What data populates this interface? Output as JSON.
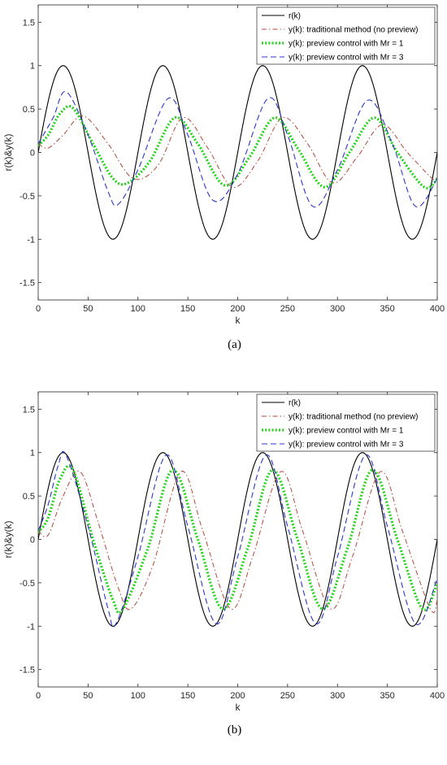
{
  "chart_data": [
    {
      "type": "line",
      "caption": "(a)",
      "xlabel": "k",
      "ylabel": "r(k)&y(k)",
      "xlim": [
        0,
        400
      ],
      "ylim": [
        -1.7,
        1.7
      ],
      "xticks": [
        "0",
        "50",
        "100",
        "150",
        "200",
        "250",
        "300",
        "350",
        "400"
      ],
      "yticks": [
        "-1.5",
        "-1",
        "-0.5",
        "0",
        "0.5",
        "1",
        "1.5"
      ],
      "grid": false,
      "legend_position": "top-right",
      "series": [
        {
          "name": "r(k)",
          "color": "#000000",
          "style": "solid",
          "model": {
            "amplitude": 1.0,
            "period": 100,
            "peak_k": 25
          }
        },
        {
          "name": "y(k): traditional method (no preview)",
          "color": "#b2473c",
          "style": "dash-dot",
          "points": [
            [
              0,
              0.1
            ],
            [
              10,
              0.05
            ],
            [
              25,
              0.2
            ],
            [
              45,
              0.42
            ],
            [
              70,
              0.1
            ],
            [
              95,
              -0.3
            ],
            [
              120,
              -0.15
            ],
            [
              145,
              0.4
            ],
            [
              170,
              0.05
            ],
            [
              195,
              -0.4
            ],
            [
              220,
              -0.1
            ],
            [
              245,
              0.4
            ],
            [
              270,
              0.1
            ],
            [
              295,
              -0.35
            ],
            [
              320,
              -0.05
            ],
            [
              345,
              0.32
            ],
            [
              370,
              0.0
            ],
            [
              395,
              -0.3
            ],
            [
              400,
              -0.29
            ]
          ]
        },
        {
          "name": "y(k): preview control with Mr = 1",
          "color": "#26d31b",
          "style": "dotted",
          "points": [
            [
              0,
              0.08
            ],
            [
              10,
              0.2
            ],
            [
              22,
              0.45
            ],
            [
              35,
              0.51
            ],
            [
              55,
              0.1
            ],
            [
              75,
              -0.3
            ],
            [
              90,
              -0.35
            ],
            [
              112,
              -0.1
            ],
            [
              137,
              0.4
            ],
            [
              160,
              0.1
            ],
            [
              187,
              -0.38
            ],
            [
              212,
              -0.05
            ],
            [
              237,
              0.4
            ],
            [
              260,
              0.05
            ],
            [
              287,
              -0.4
            ],
            [
              312,
              0.0
            ],
            [
              337,
              0.4
            ],
            [
              360,
              0.0
            ],
            [
              387,
              -0.4
            ],
            [
              400,
              -0.3
            ]
          ]
        },
        {
          "name": "y(k): preview control with Mr = 3",
          "color": "#2b37c8",
          "style": "dashed",
          "points": [
            [
              0,
              0.1
            ],
            [
              15,
              0.4
            ],
            [
              28,
              0.7
            ],
            [
              50,
              0.2
            ],
            [
              70,
              -0.45
            ],
            [
              80,
              -0.6
            ],
            [
              100,
              -0.2
            ],
            [
              130,
              0.62
            ],
            [
              150,
              0.2
            ],
            [
              175,
              -0.55
            ],
            [
              200,
              -0.25
            ],
            [
              230,
              0.62
            ],
            [
              250,
              0.2
            ],
            [
              275,
              -0.62
            ],
            [
              300,
              -0.2
            ],
            [
              330,
              0.6
            ],
            [
              355,
              0.1
            ],
            [
              378,
              -0.62
            ],
            [
              400,
              -0.3
            ]
          ]
        }
      ]
    },
    {
      "type": "line",
      "caption": "(b)",
      "xlabel": "k",
      "ylabel": "r(k)&y(k)",
      "xlim": [
        0,
        400
      ],
      "ylim": [
        -1.7,
        1.7
      ],
      "xticks": [
        "0",
        "50",
        "100",
        "150",
        "200",
        "250",
        "300",
        "350",
        "400"
      ],
      "yticks": [
        "-1.5",
        "-1",
        "-0.5",
        "0",
        "0.5",
        "1",
        "1.5"
      ],
      "grid": false,
      "legend_position": "top-right",
      "series": [
        {
          "name": "r(k)",
          "color": "#000000",
          "style": "solid",
          "model": {
            "amplitude": 1.0,
            "period": 100,
            "peak_k": 25
          }
        },
        {
          "name": "y(k): traditional method (no preview)",
          "color": "#b2473c",
          "style": "dash-dot",
          "points": [
            [
              0,
              0.1
            ],
            [
              10,
              0.05
            ],
            [
              25,
              0.5
            ],
            [
              42,
              0.78
            ],
            [
              60,
              0.2
            ],
            [
              80,
              -0.55
            ],
            [
              93,
              -0.8
            ],
            [
              115,
              -0.3
            ],
            [
              143,
              0.78
            ],
            [
              165,
              0.1
            ],
            [
              193,
              -0.8
            ],
            [
              215,
              -0.2
            ],
            [
              243,
              0.78
            ],
            [
              265,
              0.1
            ],
            [
              293,
              -0.8
            ],
            [
              315,
              -0.2
            ],
            [
              343,
              0.78
            ],
            [
              365,
              0.1
            ],
            [
              393,
              -0.8
            ],
            [
              400,
              -0.7
            ]
          ]
        },
        {
          "name": "y(k): preview control with Mr = 1",
          "color": "#26d31b",
          "style": "dotted",
          "points": [
            [
              0,
              0.08
            ],
            [
              10,
              0.25
            ],
            [
              22,
              0.7
            ],
            [
              35,
              0.8
            ],
            [
              55,
              0.0
            ],
            [
              75,
              -0.7
            ],
            [
              85,
              -0.8
            ],
            [
              110,
              -0.1
            ],
            [
              135,
              0.8
            ],
            [
              160,
              0.0
            ],
            [
              185,
              -0.8
            ],
            [
              210,
              -0.1
            ],
            [
              235,
              0.8
            ],
            [
              260,
              0.0
            ],
            [
              285,
              -0.8
            ],
            [
              310,
              -0.1
            ],
            [
              335,
              0.8
            ],
            [
              360,
              0.0
            ],
            [
              385,
              -0.8
            ],
            [
              400,
              -0.5
            ]
          ]
        },
        {
          "name": "y(k): preview control with Mr = 3",
          "color": "#2b37c8",
          "style": "dashed",
          "points": [
            [
              0,
              0.1
            ],
            [
              10,
              0.4
            ],
            [
              20,
              0.85
            ],
            [
              28,
              0.97
            ],
            [
              50,
              0.15
            ],
            [
              70,
              -0.8
            ],
            [
              78,
              -0.97
            ],
            [
              100,
              -0.2
            ],
            [
              128,
              0.97
            ],
            [
              150,
              0.15
            ],
            [
              178,
              -0.97
            ],
            [
              200,
              -0.2
            ],
            [
              228,
              0.97
            ],
            [
              250,
              0.15
            ],
            [
              278,
              -0.97
            ],
            [
              300,
              -0.2
            ],
            [
              328,
              0.97
            ],
            [
              350,
              0.15
            ],
            [
              378,
              -0.97
            ],
            [
              400,
              -0.45
            ]
          ]
        }
      ]
    }
  ]
}
